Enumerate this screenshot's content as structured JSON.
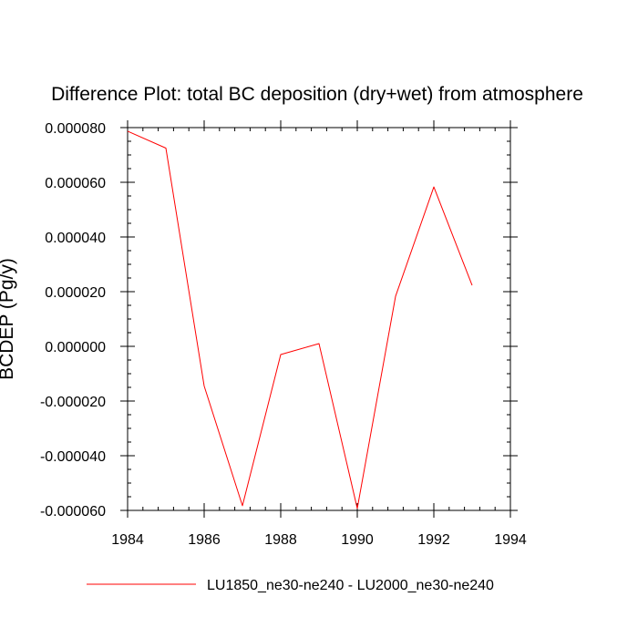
{
  "chart_data": {
    "type": "line",
    "title": "Difference Plot: total BC deposition (dry+wet) from atmosphere",
    "ylabel": "BCDEP  (Pg/y)",
    "xlabel": "",
    "xlim": [
      1984,
      1994
    ],
    "ylim": [
      -6e-05,
      8e-05
    ],
    "x_ticks": [
      1984,
      1986,
      1988,
      1990,
      1992,
      1994
    ],
    "x_tick_labels": [
      "1984",
      "1986",
      "1988",
      "1990",
      "1992",
      "1994"
    ],
    "y_ticks": [
      8e-05,
      6e-05,
      4e-05,
      2e-05,
      0,
      -2e-05,
      -4e-05,
      -6e-05
    ],
    "y_tick_labels": [
      "0.000080",
      "0.000060",
      "0.000040",
      "0.000020",
      "0.000000",
      "-0.000020",
      "-0.000040",
      "-0.000060"
    ],
    "grid": false,
    "legend_position": "bottom",
    "series": [
      {
        "name": "LU1850_ne30-ne240 - LU2000_ne30-ne240",
        "color": "#ff0000",
        "x": [
          1984,
          1985,
          1986,
          1987,
          1988,
          1989,
          1990,
          1991,
          1992,
          1993
        ],
        "y": [
          7.87e-05,
          7.25e-05,
          -1.45e-05,
          -5.83e-05,
          -3e-06,
          1e-06,
          -5.93e-05,
          1.83e-05,
          5.83e-05,
          2.23e-05
        ]
      }
    ]
  }
}
